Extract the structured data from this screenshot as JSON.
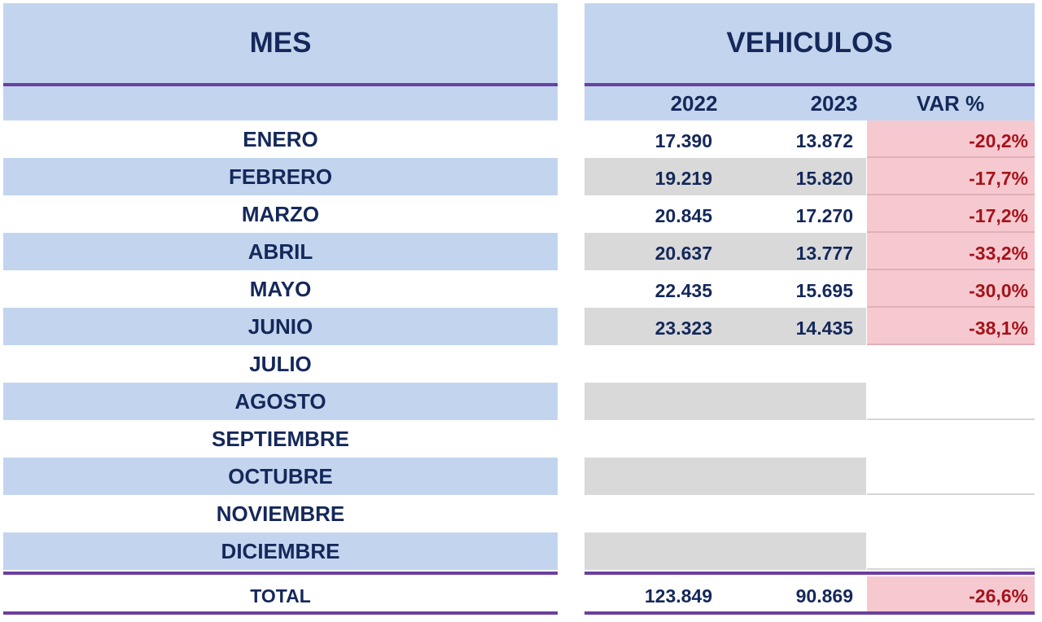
{
  "headers": {
    "mes": "MES",
    "vehiculos": "VEHICULOS",
    "year_2022": "2022",
    "year_2023": "2023",
    "var": "VAR %"
  },
  "rows": [
    {
      "month": "ENERO",
      "v2022": "17.390",
      "v2023": "13.872",
      "var": "-20,2%"
    },
    {
      "month": "FEBRERO",
      "v2022": "19.219",
      "v2023": "15.820",
      "var": "-17,7%"
    },
    {
      "month": "MARZO",
      "v2022": "20.845",
      "v2023": "17.270",
      "var": "-17,2%"
    },
    {
      "month": "ABRIL",
      "v2022": "20.637",
      "v2023": "13.777",
      "var": "-33,2%"
    },
    {
      "month": "MAYO",
      "v2022": "22.435",
      "v2023": "15.695",
      "var": "-30,0%"
    },
    {
      "month": "JUNIO",
      "v2022": "23.323",
      "v2023": "14.435",
      "var": "-38,1%"
    },
    {
      "month": "JULIO",
      "v2022": "",
      "v2023": "",
      "var": ""
    },
    {
      "month": "AGOSTO",
      "v2022": "",
      "v2023": "",
      "var": ""
    },
    {
      "month": "SEPTIEMBRE",
      "v2022": "",
      "v2023": "",
      "var": ""
    },
    {
      "month": "OCTUBRE",
      "v2022": "",
      "v2023": "",
      "var": ""
    },
    {
      "month": "NOVIEMBRE",
      "v2022": "",
      "v2023": "",
      "var": ""
    },
    {
      "month": "DICIEMBRE",
      "v2022": "",
      "v2023": "",
      "var": ""
    }
  ],
  "total": {
    "label": "TOTAL",
    "v2022": "123.849",
    "v2023": "90.869",
    "var": "-26,6%"
  },
  "colors": {
    "header_blue": "#c3d5ee",
    "row_gray": "#d9d9d9",
    "negative_bg": "#f6c9d0",
    "negative_text": "#a5131b",
    "text_navy": "#14285a",
    "accent_purple": "#6b3fa0"
  }
}
